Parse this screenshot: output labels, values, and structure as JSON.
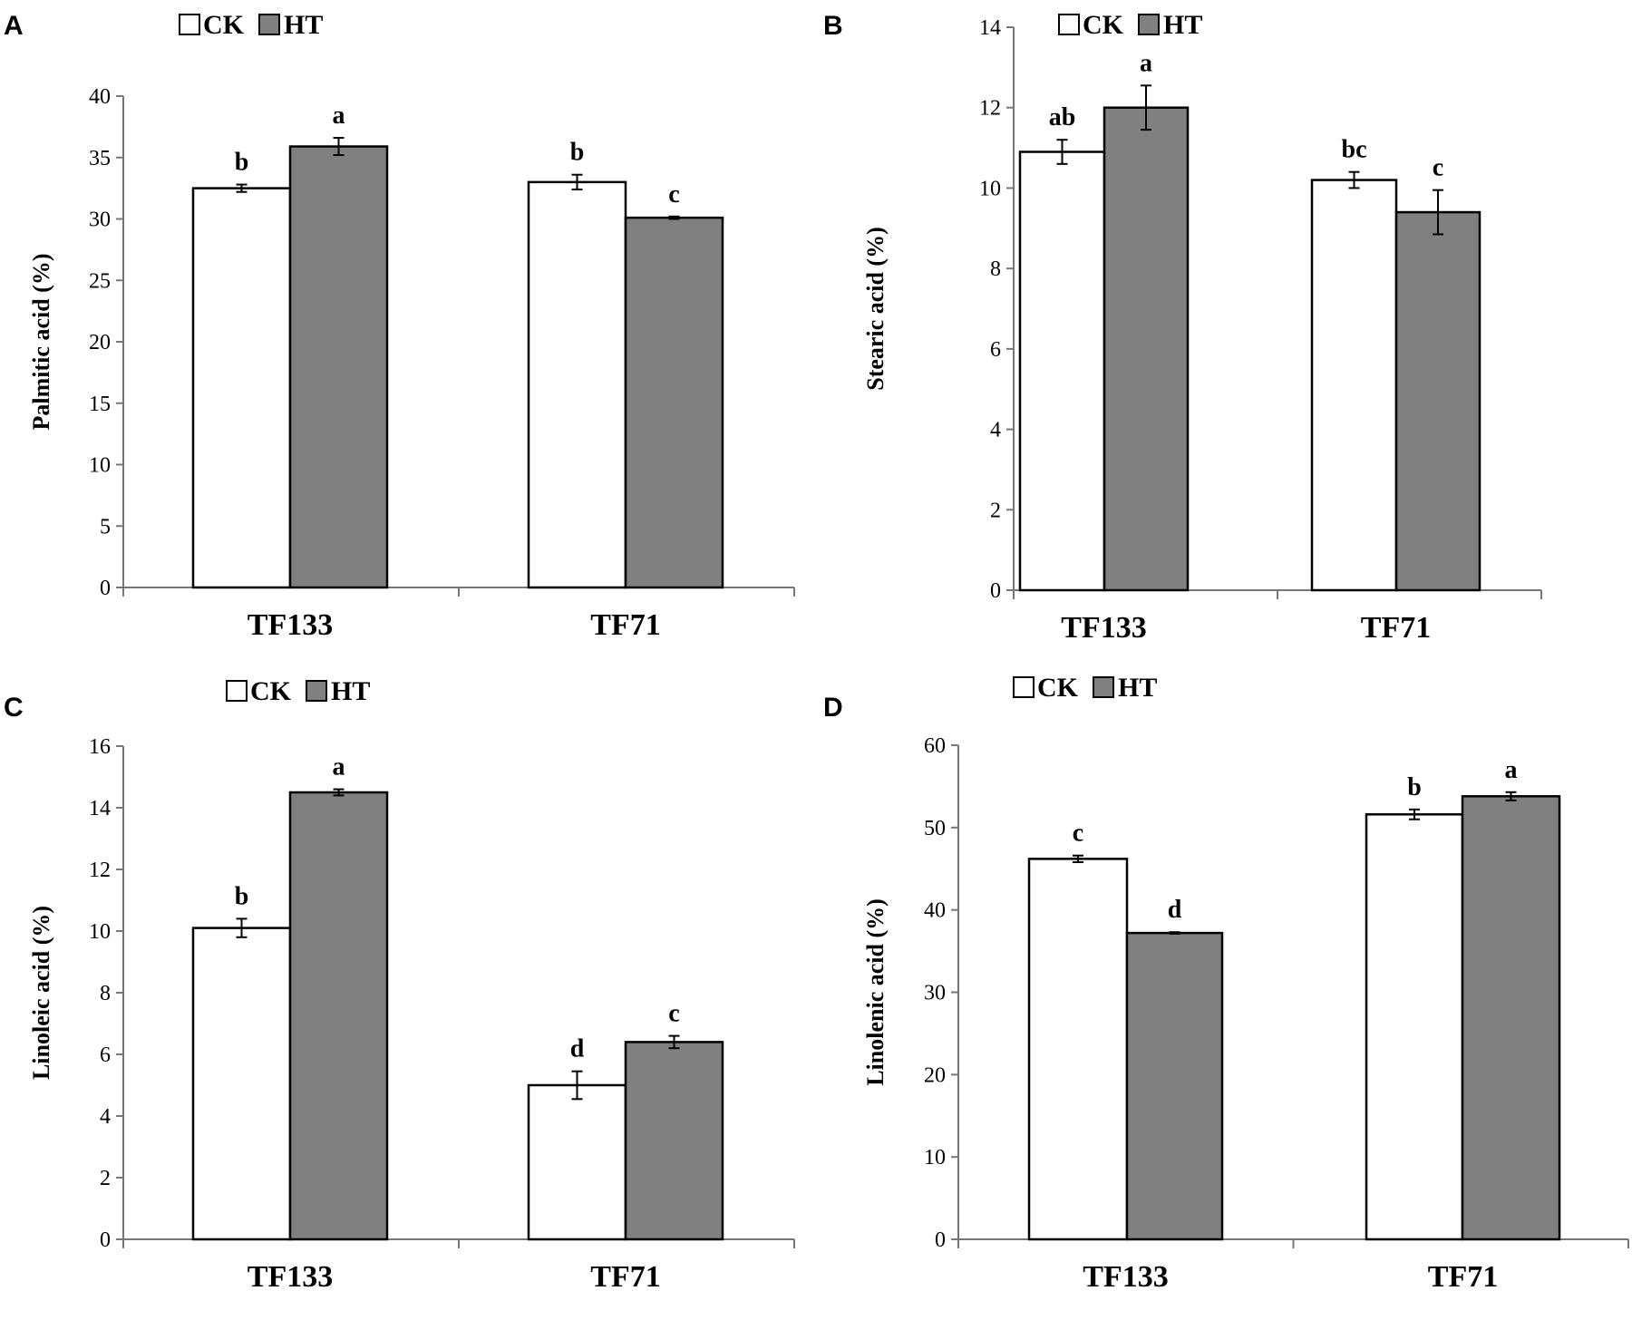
{
  "colors": {
    "ck": "#ffffff",
    "ht": "#808080",
    "stroke": "#000000"
  },
  "legend": {
    "ck_label": "CK",
    "ht_label": "HT"
  },
  "chart_data": [
    {
      "panel": "A",
      "type": "bar",
      "categories": [
        "TF133",
        "TF71"
      ],
      "series": [
        {
          "name": "CK",
          "values": [
            32.5,
            33.0
          ],
          "errors": [
            0.3,
            0.6
          ],
          "labels": [
            "b",
            "b"
          ]
        },
        {
          "name": "HT",
          "values": [
            35.9,
            30.1
          ],
          "errors": [
            0.7,
            0.1
          ],
          "labels": [
            "a",
            "c"
          ]
        }
      ],
      "ylabel": "Palmitic acid (%)",
      "ylim": [
        0,
        40
      ],
      "yticks": [
        0,
        5,
        10,
        15,
        20,
        25,
        30,
        35,
        40
      ],
      "legend_position": "top"
    },
    {
      "panel": "B",
      "type": "bar",
      "categories": [
        "TF133",
        "TF71"
      ],
      "series": [
        {
          "name": "CK",
          "values": [
            10.9,
            10.2
          ],
          "errors": [
            0.3,
            0.2
          ],
          "labels": [
            "ab",
            "bc"
          ]
        },
        {
          "name": "HT",
          "values": [
            12.0,
            9.4
          ],
          "errors": [
            0.55,
            0.55
          ],
          "labels": [
            "a",
            "c"
          ]
        }
      ],
      "ylabel": "Stearic acid (%)",
      "ylim": [
        0,
        14
      ],
      "yticks": [
        0,
        2,
        4,
        6,
        8,
        10,
        12,
        14
      ],
      "legend_position": "top"
    },
    {
      "panel": "C",
      "type": "bar",
      "categories": [
        "TF133",
        "TF71"
      ],
      "series": [
        {
          "name": "CK",
          "values": [
            10.1,
            5.0
          ],
          "errors": [
            0.3,
            0.45
          ],
          "labels": [
            "b",
            "d"
          ]
        },
        {
          "name": "HT",
          "values": [
            14.5,
            6.4
          ],
          "errors": [
            0.1,
            0.2
          ],
          "labels": [
            "a",
            "c"
          ]
        }
      ],
      "ylabel": "Linoleic acid (%)",
      "ylim": [
        0,
        16
      ],
      "yticks": [
        0,
        2,
        4,
        6,
        8,
        10,
        12,
        14,
        16
      ],
      "legend_position": "top"
    },
    {
      "panel": "D",
      "type": "bar",
      "categories": [
        "TF133",
        "TF71"
      ],
      "series": [
        {
          "name": "CK",
          "values": [
            46.2,
            51.6
          ],
          "errors": [
            0.4,
            0.6
          ],
          "labels": [
            "c",
            "b"
          ]
        },
        {
          "name": "HT",
          "values": [
            37.2,
            53.8
          ],
          "errors": [
            0.1,
            0.5
          ],
          "labels": [
            "d",
            "a"
          ]
        }
      ],
      "ylabel": "Linolenic acid (%)",
      "ylim": [
        0,
        60
      ],
      "yticks": [
        0,
        10,
        20,
        30,
        40,
        50,
        60
      ],
      "legend_position": "top"
    }
  ]
}
